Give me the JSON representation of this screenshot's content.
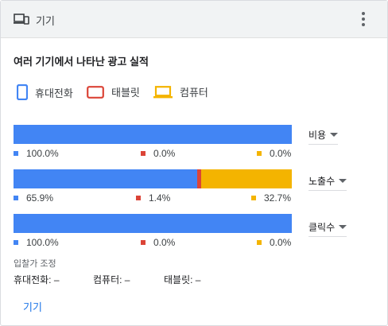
{
  "header": {
    "title": "기기",
    "icon": "devices-icon",
    "menu_icon": "more-vert-icon"
  },
  "section_title": "여러 기기에서 나타난 광고 실적",
  "colors": {
    "mobile": "#4285f4",
    "tablet": "#db4437",
    "computer": "#f4b400"
  },
  "legend": [
    {
      "label": "휴대전화",
      "icon": "phone-icon"
    },
    {
      "label": "태블릿",
      "icon": "tablet-icon"
    },
    {
      "label": "컴퓨터",
      "icon": "laptop-icon"
    }
  ],
  "rows": [
    {
      "metric": "비용",
      "values": [
        100.0,
        0.0,
        0.0
      ],
      "labels": [
        "100.0%",
        "0.0%",
        "0.0%"
      ]
    },
    {
      "metric": "노출수",
      "values": [
        65.9,
        1.4,
        32.7
      ],
      "labels": [
        "65.9%",
        "1.4%",
        "32.7%"
      ]
    },
    {
      "metric": "클릭수",
      "values": [
        100.0,
        0.0,
        0.0
      ],
      "labels": [
        "100.0%",
        "0.0%",
        "0.0%"
      ]
    }
  ],
  "bid_adjust": {
    "label": "입찰가 조정",
    "items": [
      "휴대전화: –",
      "컴퓨터: –",
      "태블릿: –"
    ]
  },
  "footer_link": "기기"
}
